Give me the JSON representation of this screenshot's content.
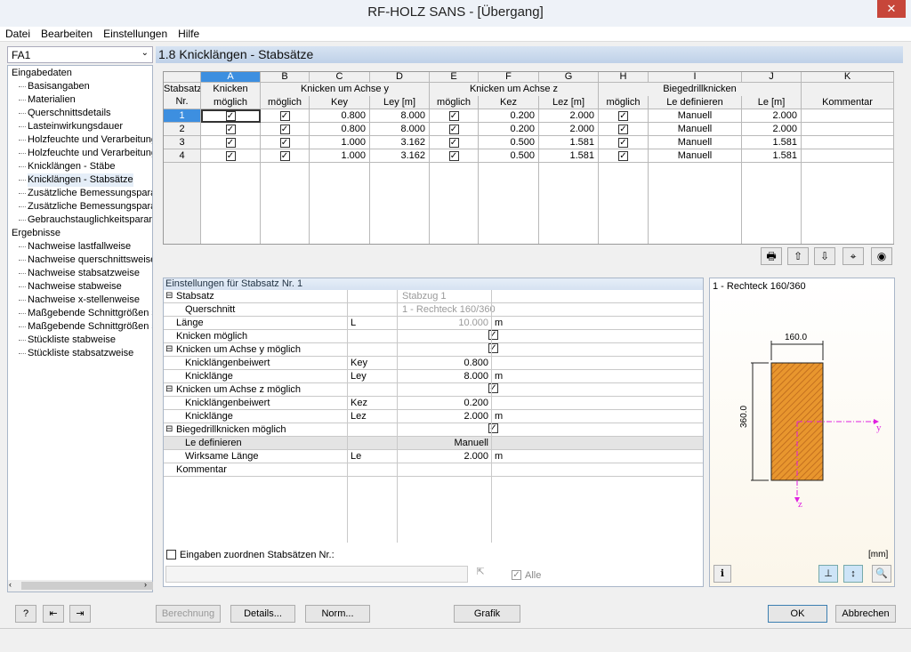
{
  "window": {
    "title": "RF-HOLZ SANS - [Übergang]",
    "close": "✕"
  },
  "menu": [
    "Datei",
    "Bearbeiten",
    "Einstellungen",
    "Hilfe"
  ],
  "case_select": "FA1",
  "tree": {
    "groups": [
      {
        "label": "Eingabedaten",
        "items": [
          "Basisangaben",
          "Materialien",
          "Querschnittsdetails",
          "Lasteinwirkungsdauer",
          "Holzfeuchte und Verarbeitungs",
          "Holzfeuchte und Verarbeitungs",
          "Knicklängen - Stäbe",
          "Knicklängen - Stabsätze",
          "Zusätzliche Bemessungsparame",
          "Zusätzliche Bemessungsparame",
          "Gebrauchstauglichkeitsparamet"
        ]
      },
      {
        "label": "Ergebnisse",
        "items": [
          "Nachweise lastfallweise",
          "Nachweise querschnittsweise",
          "Nachweise stabsatzweise",
          "Nachweise stabweise",
          "Nachweise x-stellenweise",
          "Maßgebende Schnittgrößen sta",
          "Maßgebende Schnittgrößen sta",
          "Stückliste stabweise",
          "Stückliste stabsatzweise"
        ]
      }
    ],
    "selected": "Knicklängen - Stabsätze"
  },
  "main": {
    "title": "1.8 Knicklängen - Stabsätze"
  },
  "table": {
    "letters": [
      "A",
      "B",
      "C",
      "D",
      "E",
      "F",
      "G",
      "H",
      "I",
      "J",
      "K"
    ],
    "row_header": [
      "Stabsatz",
      "Nr."
    ],
    "groups": [
      "Knicken",
      "Knicken um Achse y",
      "Knicken um Achse z",
      "Biegedrillknicken"
    ],
    "subheaders": [
      "möglich",
      "möglich",
      "Key",
      "Ley [m]",
      "möglich",
      "Kez",
      "Lez [m]",
      "möglich",
      "Le definieren",
      "Le [m]",
      "Kommentar"
    ],
    "rows": [
      {
        "nr": "1",
        "a": true,
        "b": true,
        "key": "0.800",
        "ley": "8.000",
        "e": true,
        "kez": "0.200",
        "lez": "2.000",
        "h": true,
        "def": "Manuell",
        "le": "2.000",
        "komm": ""
      },
      {
        "nr": "2",
        "a": true,
        "b": true,
        "key": "0.800",
        "ley": "8.000",
        "e": true,
        "kez": "0.200",
        "lez": "2.000",
        "h": true,
        "def": "Manuell",
        "le": "2.000",
        "komm": ""
      },
      {
        "nr": "3",
        "a": true,
        "b": true,
        "key": "1.000",
        "ley": "3.162",
        "e": true,
        "kez": "0.500",
        "lez": "1.581",
        "h": true,
        "def": "Manuell",
        "le": "1.581",
        "komm": ""
      },
      {
        "nr": "4",
        "a": true,
        "b": true,
        "key": "1.000",
        "ley": "3.162",
        "e": true,
        "kez": "0.500",
        "lez": "1.581",
        "h": true,
        "def": "Manuell",
        "le": "1.581",
        "komm": ""
      }
    ]
  },
  "settings": {
    "title": "Einstellungen für Stabsatz Nr. 1",
    "rows": [
      {
        "label": "Stabsatz",
        "sym": "",
        "val": "Stabzug 1",
        "unit": "",
        "lvl": 0,
        "exp": true,
        "gray": true
      },
      {
        "label": "Querschnitt",
        "sym": "",
        "val": "1 - Rechteck 160/360",
        "unit": "",
        "lvl": 1,
        "gray": true
      },
      {
        "label": "Länge",
        "sym": "L",
        "val": "10.000",
        "unit": "m",
        "lvl": 0,
        "gray": true
      },
      {
        "label": "Knicken möglich",
        "sym": "",
        "val": "☑",
        "unit": "",
        "lvl": 0
      },
      {
        "label": "Knicken um Achse y möglich",
        "sym": "",
        "val": "☑",
        "unit": "",
        "lvl": 0,
        "exp": true
      },
      {
        "label": "Knicklängenbeiwert",
        "sym": "Key",
        "val": "0.800",
        "unit": "",
        "lvl": 1
      },
      {
        "label": "Knicklänge",
        "sym": "Ley",
        "val": "8.000",
        "unit": "m",
        "lvl": 1
      },
      {
        "label": "Knicken um Achse z möglich",
        "sym": "",
        "val": "☑",
        "unit": "",
        "lvl": 0,
        "exp": true
      },
      {
        "label": "Knicklängenbeiwert",
        "sym": "Kez",
        "val": "0.200",
        "unit": "",
        "lvl": 1
      },
      {
        "label": "Knicklänge",
        "sym": "Lez",
        "val": "2.000",
        "unit": "m",
        "lvl": 1
      },
      {
        "label": "Biegedrillknicken möglich",
        "sym": "",
        "val": "☑",
        "unit": "",
        "lvl": 0,
        "exp": true
      },
      {
        "label": "Le definieren",
        "sym": "",
        "val": "Manuell",
        "unit": "",
        "lvl": 1,
        "shade": true
      },
      {
        "label": "Wirksame Länge",
        "sym": "Le",
        "val": "2.000",
        "unit": "m",
        "lvl": 1
      },
      {
        "label": "Kommentar",
        "sym": "",
        "val": "",
        "unit": "",
        "lvl": 0
      }
    ],
    "assign_label": "Eingaben zuordnen Stabsätzen Nr.:",
    "assign_value": "",
    "all_label": "Alle",
    "all_checked": true
  },
  "graphic": {
    "title": "1 - Rechteck 160/360",
    "width": "160.0",
    "height": "360.0",
    "axis_y": "y",
    "axis_z": "z",
    "unit": "[mm]",
    "fill": "#e8962e",
    "axis_color": "#e020e0"
  },
  "buttons": {
    "calc": "Berechnung",
    "details": "Details...",
    "norm": "Norm...",
    "grafik": "Grafik",
    "ok": "OK",
    "cancel": "Abbrechen"
  }
}
